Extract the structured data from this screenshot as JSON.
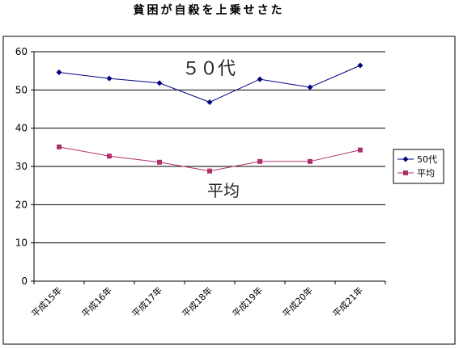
{
  "chart_data": {
    "type": "line",
    "title": "貧困が自殺を上乗せさた",
    "categories": [
      "平成15年",
      "平成16年",
      "平成17年",
      "平成18年",
      "平成19年",
      "平成20年",
      "平成21年"
    ],
    "series": [
      {
        "name": "50代",
        "values": [
          54.6,
          53.0,
          51.8,
          46.8,
          52.8,
          50.7,
          56.4
        ],
        "color": "#000080",
        "marker": "diamond"
      },
      {
        "name": "平均",
        "values": [
          35.1,
          32.7,
          31.1,
          28.8,
          31.3,
          31.3,
          34.3
        ],
        "color": "#b0306a",
        "marker": "square"
      }
    ],
    "annotations": [
      "５０代",
      "平均"
    ],
    "ylim": [
      0,
      60
    ],
    "yticks": [
      0,
      10,
      20,
      30,
      40,
      50,
      60
    ],
    "grid": true,
    "legend": "right",
    "xlabel": "",
    "ylabel": ""
  }
}
